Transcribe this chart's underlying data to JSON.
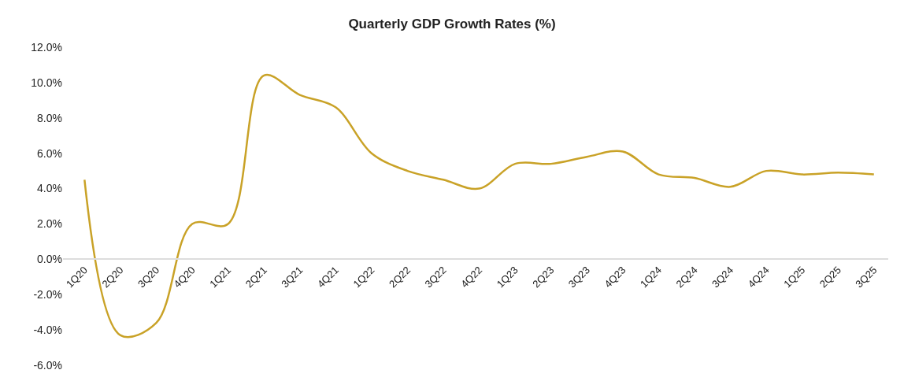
{
  "chart_data": {
    "type": "line",
    "title": "Quarterly GDP Growth Rates (%)",
    "categories": [
      "1Q20",
      "2Q20",
      "3Q20",
      "4Q20",
      "1Q21",
      "2Q21",
      "3Q21",
      "4Q21",
      "1Q22",
      "2Q22",
      "3Q22",
      "4Q22",
      "1Q23",
      "2Q23",
      "3Q23",
      "4Q23",
      "1Q24",
      "2Q24",
      "3Q24",
      "4Q24",
      "1Q25",
      "2Q25",
      "3Q25"
    ],
    "series": [
      {
        "color": "#c9a227",
        "values": [
          4.5,
          -4.3,
          -3.6,
          2.0,
          2.0,
          10.4,
          9.3,
          8.6,
          6.0,
          5.0,
          4.5,
          4.0,
          5.4,
          5.4,
          5.8,
          6.1,
          4.8,
          4.6,
          4.1,
          5.0,
          4.8,
          4.9,
          4.8
        ]
      }
    ],
    "ylim": [
      -6,
      12
    ],
    "yticks": [
      {
        "value": -6,
        "label": "-6.0%"
      },
      {
        "value": -4,
        "label": "-4.0%"
      },
      {
        "value": -2,
        "label": "-2.0%"
      },
      {
        "value": 0,
        "label": "0.0%"
      },
      {
        "value": 2,
        "label": "2.0%"
      },
      {
        "value": 4,
        "label": "4.0%"
      },
      {
        "value": 6,
        "label": "6.0%"
      },
      {
        "value": 8,
        "label": "8.0%"
      },
      {
        "value": 10,
        "label": "10.0%"
      },
      {
        "value": 12,
        "label": "12.0%"
      }
    ],
    "marker": "none",
    "line_style": "solid"
  }
}
